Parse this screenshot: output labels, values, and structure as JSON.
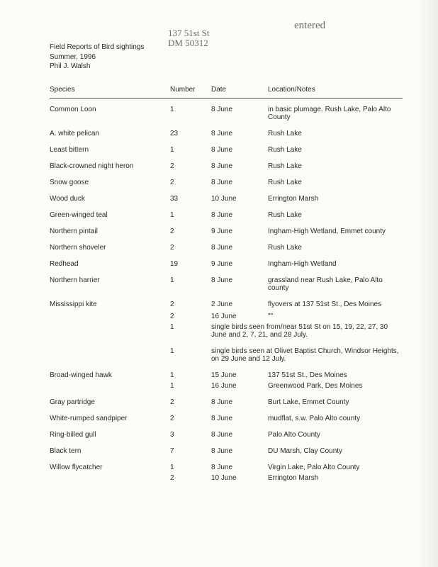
{
  "handwriting": {
    "entered": "entered",
    "address_line1": "137 51st St",
    "address_line2": "DM  50312"
  },
  "header": {
    "line1": "Field Reports of Bird sightings",
    "line2": "Summer, 1996",
    "line3": "Phil J. Walsh"
  },
  "columns": {
    "species": "Species",
    "number": "Number",
    "date": "Date",
    "notes": "Location/Notes"
  },
  "rows": [
    {
      "species": "Common Loon",
      "number": "1",
      "date": "8 June",
      "notes": "in basic plumage. Rush Lake, Palo Alto County",
      "gap": true
    },
    {
      "species": "A. white pelican",
      "number": "23",
      "date": "8 June",
      "notes": "Rush Lake",
      "gap": true
    },
    {
      "species": "Least bittern",
      "number": "1",
      "date": "8 June",
      "notes": "Rush Lake",
      "gap": true
    },
    {
      "species": "Black-crowned night heron",
      "number": "2",
      "date": "8 June",
      "notes": "Rush Lake",
      "gap": true
    },
    {
      "species": "Snow goose",
      "number": "2",
      "date": "8 June",
      "notes": "Rush Lake",
      "gap": true
    },
    {
      "species": "Wood duck",
      "number": "33",
      "date": "10 June",
      "notes": "Errington Marsh",
      "gap": true
    },
    {
      "species": "Green-winged teal",
      "number": "1",
      "date": "8 June",
      "notes": "Rush Lake",
      "gap": true
    },
    {
      "species": "Northern pintail",
      "number": "2",
      "date": "9 June",
      "notes": "Ingham-High Wetland, Emmet county",
      "gap": true
    },
    {
      "species": "Northern shoveler",
      "number": "2",
      "date": "8 June",
      "notes": "Rush Lake",
      "gap": true
    },
    {
      "species": "Redhead",
      "number": "19",
      "date": "9 June",
      "notes": "Ingham-High Wetland",
      "gap": true
    },
    {
      "species": "Northern harrier",
      "number": "1",
      "date": "8 June",
      "notes": "grassland near Rush Lake, Palo Alto county",
      "gap": true
    },
    {
      "species": "Mississippi kite",
      "number": "2",
      "date": "2 June",
      "notes": "flyovers at 137 51st St., Des Moines",
      "gap": true
    },
    {
      "species": "",
      "number": "2",
      "date": "16 June",
      "notes": "         \"\"",
      "subgap": true
    },
    {
      "species": "",
      "number": "1",
      "date": "",
      "notes": "single birds seen from/near 51st St on 15, 19, 22, 27, 30 June and 2, 7, 21, and 28 July.",
      "wide": true
    },
    {
      "species": "",
      "number": "1",
      "date": "",
      "notes": "single birds seen at Olivet Baptist Church, Windsor Heights, on 29 June and 12 July.",
      "gap": true,
      "wide": true
    },
    {
      "species": "Broad-winged hawk",
      "number": "1",
      "date": "15 June",
      "notes": "137 51st St., Des Moines",
      "gap": true
    },
    {
      "species": "",
      "number": "1",
      "date": "16 June",
      "notes": "Greenwood Park, Des Moines"
    },
    {
      "species": "Gray partridge",
      "number": "2",
      "date": "8 June",
      "notes": "Burt Lake, Emmet County",
      "gap": true
    },
    {
      "species": "White-rumped sandpiper",
      "number": "2",
      "date": "8 June",
      "notes": "mudflat, s.w. Palo Alto county",
      "gap": true
    },
    {
      "species": "Ring-billed gull",
      "number": "3",
      "date": "8 June",
      "notes": "Palo Alto County",
      "gap": true
    },
    {
      "species": "Black tern",
      "number": "7",
      "date": "8 June",
      "notes": "DU Marsh, Clay County",
      "gap": true
    },
    {
      "species": "Willow flycatcher",
      "number": "1",
      "date": "8 June",
      "notes": "Virgin Lake,  Palo Alto County",
      "gap": true
    },
    {
      "species": "",
      "number": "2",
      "date": "10 June",
      "notes": "Errington Marsh"
    }
  ]
}
